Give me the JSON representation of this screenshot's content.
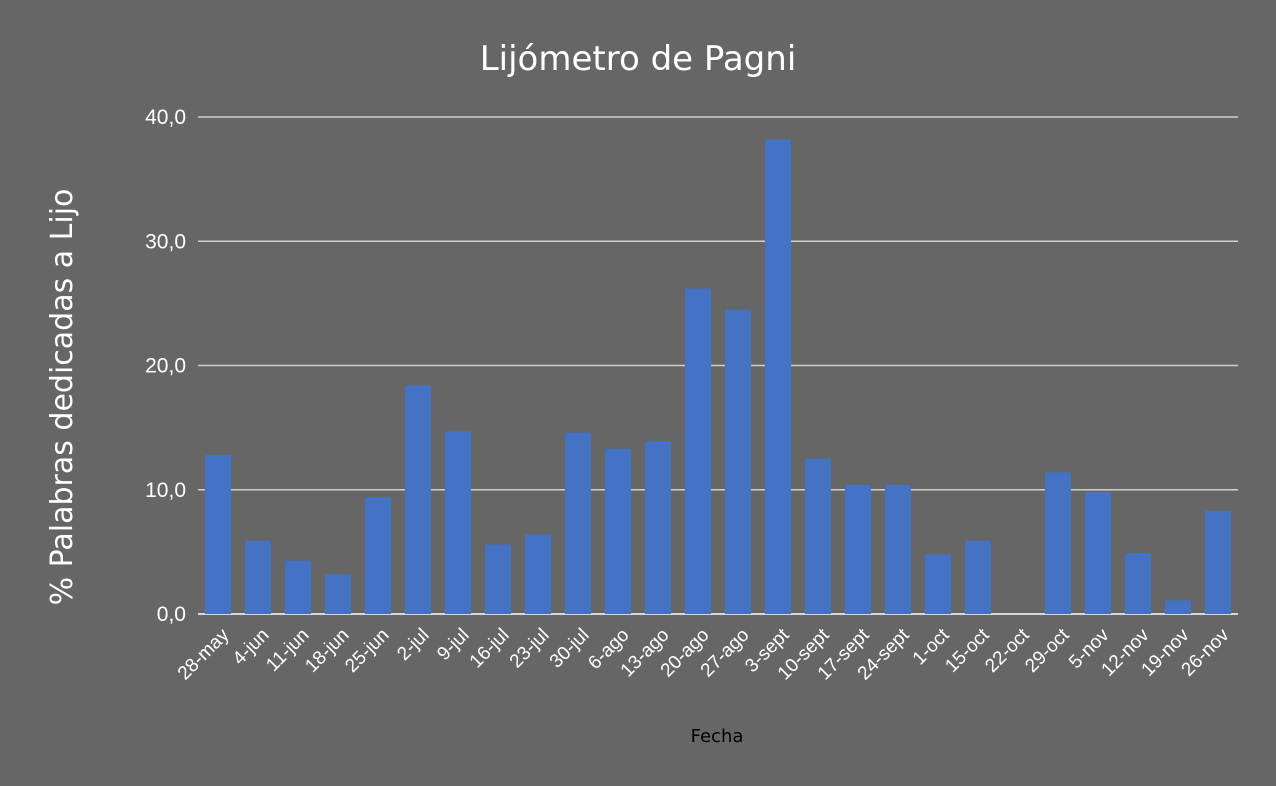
{
  "chart_data": {
    "type": "bar",
    "title": "Lijómetro de Pagni",
    "xlabel": "Fecha",
    "ylabel": "% Palabras dedicadas a Lijo",
    "ylim": [
      0,
      40
    ],
    "yticks": [
      "0,0",
      "10,0",
      "20,0",
      "30,0",
      "40,0"
    ],
    "grid": true,
    "bar_color": "#4472C4",
    "background_color": "#666666",
    "categories": [
      "28-may",
      "4-jun",
      "11-jun",
      "18-jun",
      "25-jun",
      "2-jul",
      "9-jul",
      "16-jul",
      "23-jul",
      "30-jul",
      "6-ago",
      "13-ago",
      "20-ago",
      "27-ago",
      "3-sept",
      "10-sept",
      "17-sept",
      "24-sept",
      "1-oct",
      "15-oct",
      "22-oct",
      "29-oct",
      "5-nov",
      "12-nov",
      "19-nov",
      "26-nov"
    ],
    "values": [
      12.8,
      5.9,
      4.3,
      3.2,
      9.4,
      18.4,
      14.7,
      5.6,
      6.4,
      14.6,
      13.3,
      13.9,
      26.2,
      24.5,
      38.2,
      12.5,
      10.4,
      10.4,
      4.8,
      5.9,
      0,
      11.4,
      9.8,
      4.9,
      1.1,
      8.3
    ]
  }
}
